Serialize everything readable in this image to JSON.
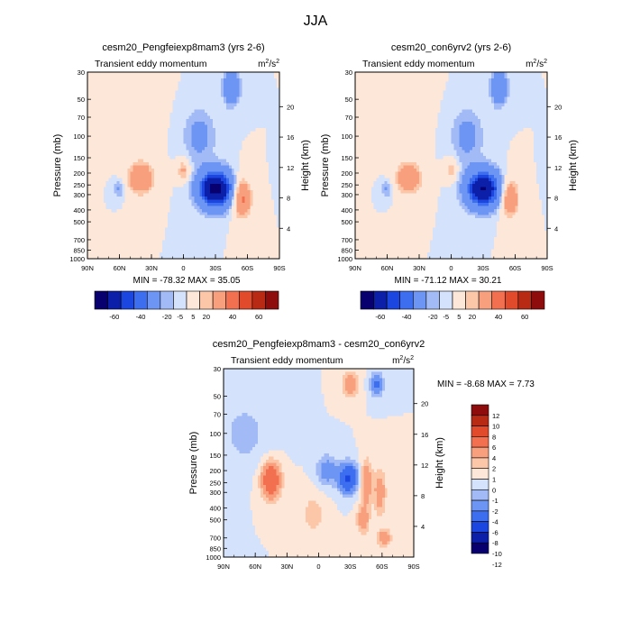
{
  "title": "JJA",
  "units": {
    "base": "m",
    "exp": "2",
    "per": "/s",
    "per_exp": "2"
  },
  "field_label": "Transient eddy momentum",
  "axis": {
    "ylabel": "Pressure (mb)",
    "y2label": "Height (km)",
    "pressure_ticks": [
      "30",
      "50",
      "70",
      "100",
      "150",
      "200",
      "250",
      "300",
      "400",
      "500",
      "700",
      "850",
      "1000"
    ],
    "pressure_values": [
      30,
      50,
      70,
      100,
      150,
      200,
      250,
      300,
      400,
      500,
      700,
      850,
      1000
    ],
    "height_ticks": [
      "20",
      "16",
      "12",
      "8",
      "4"
    ],
    "height_values": [
      20,
      16,
      12,
      8,
      4
    ],
    "lat_ticks": [
      "90N",
      "60N",
      "30N",
      "0",
      "30S",
      "60S",
      "90S"
    ],
    "lat_values": [
      90,
      60,
      30,
      0,
      -30,
      -60,
      -90
    ]
  },
  "colors": {
    "levels_main": [
      "#08006e",
      "#0b1fa8",
      "#1b46e0",
      "#3e6ef0",
      "#6d95f4",
      "#a2bbf7",
      "#d4e2fb",
      "#fde7d9",
      "#fcc6a8",
      "#f8a07e",
      "#f2704f",
      "#e14a2a",
      "#b92a15",
      "#8e0d0c"
    ],
    "levels_diff": [
      "#08006e",
      "#0b1fa8",
      "#1b46e0",
      "#3e6ef0",
      "#6d95f4",
      "#a2bbf7",
      "#d4e2fb",
      "#fde7d9",
      "#fcc6a8",
      "#f8a07e",
      "#f2704f",
      "#e14a2a",
      "#b92a15",
      "#8e0d0c"
    ]
  },
  "colorbar_main_labels": [
    "-60",
    "-40",
    "-20",
    "-5",
    "5",
    "20",
    "40",
    "60"
  ],
  "colorbar_diff_labels": [
    "12",
    "10",
    "8",
    "6",
    "4",
    "2",
    "1",
    "0",
    "-1",
    "-2",
    "-4",
    "-6",
    "-8",
    "-10",
    "-12"
  ],
  "chart_data": [
    {
      "type": "heatmap",
      "title": "cesm20_Pengfeiexp8mam3 (yrs 2-6)",
      "subtitle": "Transient eddy momentum",
      "units": "m2/s2",
      "xlabel": "",
      "ylabel": "Pressure (mb)",
      "y2label": "Height (km)",
      "xlim": [
        90,
        -90
      ],
      "ylim": [
        1000,
        30
      ],
      "min_label": "MIN = -78.32",
      "max_label": "MAX =  35.05",
      "min": -78.32,
      "max": 35.05,
      "contour_levels": [
        -70,
        -60,
        -50,
        -40,
        -30,
        -20,
        -10,
        -5,
        0,
        5,
        10,
        15,
        20,
        30,
        40,
        50,
        60,
        70
      ],
      "features": [
        {
          "lat": -30,
          "p": 270,
          "amp": -78,
          "wlat": 11,
          "wlogp": 0.24
        },
        {
          "lat": 40,
          "p": 220,
          "amp": 30,
          "wlat": 9,
          "wlogp": 0.22
        },
        {
          "lat": 0,
          "p": 190,
          "amp": 18,
          "wlat": 4,
          "wlogp": 0.14
        },
        {
          "lat": -55,
          "p": 320,
          "amp": 35,
          "wlat": 6,
          "wlogp": 0.26
        },
        {
          "lat": -45,
          "p": 40,
          "amp": -30,
          "wlat": 5,
          "wlogp": 0.22
        },
        {
          "lat": 60,
          "p": 270,
          "amp": -12,
          "wlat": 4,
          "wlogp": 0.12
        },
        {
          "lat": -15,
          "p": 100,
          "amp": -14,
          "wlat": 10,
          "wlogp": 0.35
        },
        {
          "lat": 65,
          "p": 60,
          "amp": 8,
          "wlat": 20,
          "wlogp": 0.4
        }
      ]
    },
    {
      "type": "heatmap",
      "title": "cesm20_con6yrv2 (yrs 2-6)",
      "subtitle": "Transient eddy momentum",
      "units": "m2/s2",
      "xlabel": "",
      "ylabel": "Pressure (mb)",
      "y2label": "Height (km)",
      "xlim": [
        90,
        -90
      ],
      "ylim": [
        1000,
        30
      ],
      "min_label": "MIN = -71.12",
      "max_label": "MAX =  30.21",
      "min": -71.12,
      "max": 30.21,
      "contour_levels": [
        -70,
        -60,
        -50,
        -40,
        -30,
        -20,
        -10,
        -5,
        0,
        5,
        10,
        15,
        20,
        30,
        40,
        50,
        60,
        70
      ],
      "features": [
        {
          "lat": -30,
          "p": 270,
          "amp": -71,
          "wlat": 11,
          "wlogp": 0.24
        },
        {
          "lat": 40,
          "p": 220,
          "amp": 27,
          "wlat": 9,
          "wlogp": 0.22
        },
        {
          "lat": 0,
          "p": 190,
          "amp": 16,
          "wlat": 4,
          "wlogp": 0.14
        },
        {
          "lat": -55,
          "p": 320,
          "amp": 30,
          "wlat": 6,
          "wlogp": 0.26
        },
        {
          "lat": -45,
          "p": 40,
          "amp": -30,
          "wlat": 5,
          "wlogp": 0.22
        },
        {
          "lat": 60,
          "p": 270,
          "amp": -12,
          "wlat": 4,
          "wlogp": 0.12
        },
        {
          "lat": -15,
          "p": 100,
          "amp": -14,
          "wlat": 10,
          "wlogp": 0.35
        },
        {
          "lat": 65,
          "p": 60,
          "amp": 8,
          "wlat": 20,
          "wlogp": 0.4
        }
      ]
    },
    {
      "type": "heatmap",
      "title": "cesm20_Pengfeiexp8mam3 - cesm20_con6yrv2",
      "subtitle": "Transient eddy momentum",
      "units": "m2/s2",
      "xlabel": "",
      "ylabel": "Pressure (mb)",
      "y2label": "Height (km)",
      "xlim": [
        90,
        -90
      ],
      "ylim": [
        1000,
        30
      ],
      "min_label": "MIN =  -8.68",
      "max_label": "MAX =   7.73",
      "min": -8.68,
      "max": 7.73,
      "contour_levels": [
        -12,
        -10,
        -8,
        -6,
        -4,
        -2,
        -1,
        0,
        1,
        2,
        4,
        6,
        8,
        10,
        12
      ],
      "features": [
        {
          "lat": 45,
          "p": 240,
          "amp": 7.7,
          "wlat": 6,
          "wlogp": 0.22
        },
        {
          "lat": -28,
          "p": 230,
          "amp": -8.7,
          "wlat": 6,
          "wlogp": 0.18
        },
        {
          "lat": -8,
          "p": 200,
          "amp": -3,
          "wlat": 7,
          "wlogp": 0.2
        },
        {
          "lat": -45,
          "p": 250,
          "amp": 4,
          "wlat": 4,
          "wlogp": 0.28
        },
        {
          "lat": -58,
          "p": 300,
          "amp": 3,
          "wlat": 4,
          "wlogp": 0.3
        },
        {
          "lat": -42,
          "p": 500,
          "amp": 3.5,
          "wlat": 4,
          "wlogp": 0.18
        },
        {
          "lat": -55,
          "p": 40,
          "amp": -5,
          "wlat": 4,
          "wlogp": 0.14
        },
        {
          "lat": -30,
          "p": 40,
          "amp": 4,
          "wlat": 5,
          "wlogp": 0.15
        },
        {
          "lat": -62,
          "p": 700,
          "amp": 3,
          "wlat": 5,
          "wlogp": 0.12
        },
        {
          "lat": 5,
          "p": 450,
          "amp": 1.5,
          "wlat": 8,
          "wlogp": 0.3
        },
        {
          "lat": 70,
          "p": 100,
          "amp": -1.5,
          "wlat": 15,
          "wlogp": 0.4
        }
      ]
    }
  ]
}
